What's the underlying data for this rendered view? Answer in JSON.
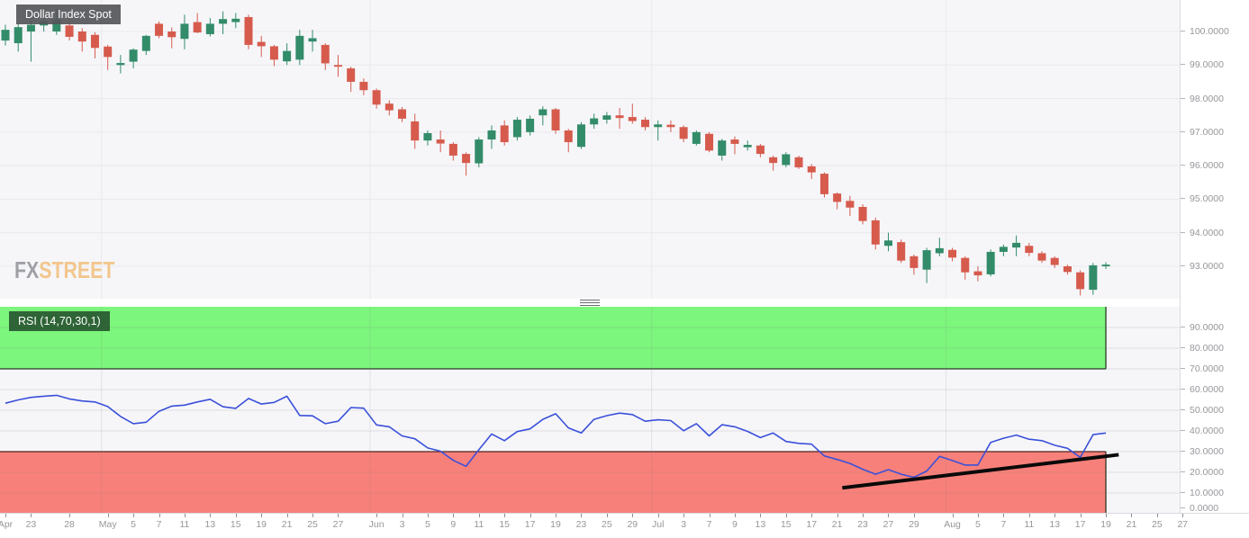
{
  "chart": {
    "symbol_label": "Dollar Index Spot",
    "indicator_label": "RSI (14,70,30,1)"
  },
  "watermark": {
    "fx": "FX",
    "street": "STREET"
  },
  "colors": {
    "up_candle": "#338c69",
    "down_candle": "#d65b4d",
    "rsi_line": "#3a50d9",
    "overbought_band": "#7cf67c",
    "oversold_band": "#f8807a",
    "band_border_dark": "#1f2a1f",
    "oversold_border_dark": "#4a1512",
    "trendline": "#0a0a0a",
    "plot_bg": "#f6f6f9",
    "grid": "#e9e9ee",
    "axis_text": "#96979b",
    "symbol_label_bg": "#58595c",
    "rsi_label_bg": "#2d5c35",
    "watermark_fx": "#9a9ca1",
    "watermark_street": "#f2c488"
  },
  "price_axis": {
    "tick_values": [
      100,
      99,
      98,
      97,
      96,
      95,
      94,
      93
    ],
    "tick_labels": [
      "100.0000",
      "99.0000",
      "98.0000",
      "97.0000",
      "96.0000",
      "95.0000",
      "94.0000",
      "93.0000"
    ]
  },
  "rsi_axis": {
    "tick_values": [
      90,
      80,
      70,
      60,
      50,
      40,
      30,
      20,
      10,
      0
    ],
    "tick_labels": [
      "90.0000",
      "80.0000",
      "70.0000",
      "60.0000",
      "50.0000",
      "40.0000",
      "30.0000",
      "20.0000",
      "10.0000",
      "0.0000"
    ]
  },
  "x_axis": {
    "ticks": [
      [
        "Apr",
        0
      ],
      [
        "23",
        2
      ],
      [
        "28",
        5
      ],
      [
        "May",
        8
      ],
      [
        "5",
        10
      ],
      [
        "7",
        12
      ],
      [
        "11",
        14
      ],
      [
        "13",
        16
      ],
      [
        "15",
        18
      ],
      [
        "19",
        20
      ],
      [
        "21",
        22
      ],
      [
        "25",
        24
      ],
      [
        "27",
        26
      ],
      [
        "Jun",
        29
      ],
      [
        "3",
        31
      ],
      [
        "5",
        33
      ],
      [
        "9",
        35
      ],
      [
        "11",
        37
      ],
      [
        "15",
        39
      ],
      [
        "17",
        41
      ],
      [
        "19",
        43
      ],
      [
        "23",
        45
      ],
      [
        "25",
        47
      ],
      [
        "29",
        49
      ],
      [
        "Jul",
        51
      ],
      [
        "3",
        53
      ],
      [
        "7",
        55
      ],
      [
        "9",
        57
      ],
      [
        "13",
        59
      ],
      [
        "15",
        61
      ],
      [
        "17",
        63
      ],
      [
        "21",
        65
      ],
      [
        "23",
        67
      ],
      [
        "27",
        69
      ],
      [
        "29",
        71
      ],
      [
        "Aug",
        74
      ],
      [
        "5",
        76
      ],
      [
        "7",
        78
      ],
      [
        "11",
        80
      ],
      [
        "13",
        82
      ],
      [
        "17",
        84
      ],
      [
        "19",
        86
      ],
      [
        "21",
        88
      ],
      [
        "25",
        90
      ],
      [
        "27",
        92
      ]
    ]
  },
  "chart_data": [
    {
      "type": "candlestick",
      "title": "Dollar Index Spot",
      "ylim": [
        92.05,
        100.95
      ],
      "y_ticks": [
        100,
        99,
        98,
        97,
        96,
        95,
        94,
        93
      ],
      "ohlc_format": [
        "date",
        "open",
        "high",
        "low",
        "close"
      ],
      "candles": [
        [
          "Apr 21",
          99.73,
          100.2,
          99.58,
          100.05
        ],
        [
          "Apr 22",
          99.65,
          100.22,
          99.4,
          100.13
        ],
        [
          "Apr 23",
          100,
          100.32,
          99.1,
          100.2
        ],
        [
          "Apr 24",
          100.18,
          100.45,
          100,
          100.3
        ],
        [
          "Apr 27",
          100,
          100.72,
          99.9,
          100.36
        ],
        [
          "Apr 28",
          100.18,
          100.45,
          99.73,
          99.84
        ],
        [
          "Apr 29",
          100,
          100.1,
          99.4,
          99.7
        ],
        [
          "Apr 30",
          99.9,
          99.98,
          99.2,
          99.51
        ],
        [
          "May 1",
          99.55,
          99.6,
          98.85,
          99.24
        ],
        [
          "May 4",
          99,
          99.3,
          98.75,
          99.06
        ],
        [
          "May 5",
          99.1,
          99.5,
          98.9,
          99.46
        ],
        [
          "May 6",
          99.42,
          99.9,
          99.3,
          99.87
        ],
        [
          "May 7",
          100.23,
          100.3,
          99.8,
          99.87
        ],
        [
          "May 8",
          100,
          100.12,
          99.5,
          99.83
        ],
        [
          "May 11",
          99.78,
          100.5,
          99.47,
          100.23
        ],
        [
          "May 12",
          100.28,
          100.55,
          99.95,
          99.97
        ],
        [
          "May 13",
          99.92,
          100.4,
          99.85,
          100.23
        ],
        [
          "May 14",
          100.23,
          100.6,
          99.92,
          100.37
        ],
        [
          "May 15",
          100.28,
          100.55,
          100.1,
          100.38
        ],
        [
          "May 18",
          100.43,
          100.5,
          99.47,
          99.6
        ],
        [
          "May 19",
          99.69,
          99.87,
          99.24,
          99.56
        ],
        [
          "May 20",
          99.56,
          99.6,
          98.97,
          99.16
        ],
        [
          "May 21",
          99.11,
          99.65,
          99,
          99.42
        ],
        [
          "May 22",
          99.16,
          100.05,
          99,
          99.87
        ],
        [
          "May 25",
          99.7,
          100.05,
          99.4,
          99.8
        ],
        [
          "May 26",
          99.6,
          99.65,
          98.85,
          99.05
        ],
        [
          "May 27",
          99,
          99.3,
          98.65,
          98.95
        ],
        [
          "May 28",
          98.9,
          98.95,
          98.2,
          98.5
        ],
        [
          "May 29",
          98.5,
          98.6,
          98.1,
          98.25
        ],
        [
          "Jun 1",
          98.25,
          98.3,
          97.7,
          97.82
        ],
        [
          "Jun 2",
          97.85,
          97.95,
          97.5,
          97.65
        ],
        [
          "Jun 3",
          97.68,
          97.75,
          97.3,
          97.4
        ],
        [
          "Jun 4",
          97.32,
          97.55,
          96.5,
          96.75
        ],
        [
          "Jun 5",
          96.75,
          97.05,
          96.6,
          96.97
        ],
        [
          "Jun 8",
          96.78,
          97.05,
          96.4,
          96.66
        ],
        [
          "Jun 9",
          96.65,
          96.7,
          96.15,
          96.3
        ],
        [
          "Jun 10",
          96.35,
          96.4,
          95.7,
          96.08
        ],
        [
          "Jun 11",
          96.07,
          96.85,
          95.95,
          96.78
        ],
        [
          "Jun 12",
          96.78,
          97.2,
          96.5,
          97.05
        ],
        [
          "Jun 15",
          97.2,
          97.35,
          96.6,
          96.7
        ],
        [
          "Jun 16",
          96.85,
          97.45,
          96.75,
          97.37
        ],
        [
          "Jun 17",
          97,
          97.5,
          96.9,
          97.4
        ],
        [
          "Jun 18",
          97.5,
          97.77,
          97.2,
          97.68
        ],
        [
          "Jun 19",
          97.68,
          97.72,
          96.95,
          97.05
        ],
        [
          "Jun 22",
          97.05,
          97.1,
          96.4,
          96.7
        ],
        [
          "Jun 23",
          96.56,
          97.3,
          96.5,
          97.23
        ],
        [
          "Jun 24",
          97.23,
          97.55,
          97.1,
          97.41
        ],
        [
          "Jun 25",
          97.37,
          97.6,
          97.25,
          97.5
        ],
        [
          "Jun 26",
          97.5,
          97.72,
          97.1,
          97.42
        ],
        [
          "Jun 29",
          97.45,
          97.85,
          97.25,
          97.33
        ],
        [
          "Jun 30",
          97.37,
          97.45,
          97.05,
          97.15
        ],
        [
          "Jul 1",
          97.15,
          97.35,
          96.75,
          97.23
        ],
        [
          "Jul 2",
          97.22,
          97.35,
          97,
          97.15
        ],
        [
          "Jul 3",
          97.15,
          97.2,
          96.7,
          96.8
        ],
        [
          "Jul 6",
          96.65,
          97.05,
          96.6,
          97
        ],
        [
          "Jul 7",
          96.95,
          97,
          96.4,
          96.45
        ],
        [
          "Jul 8",
          96.3,
          96.8,
          96.15,
          96.75
        ],
        [
          "Jul 9",
          96.78,
          96.87,
          96.34,
          96.65
        ],
        [
          "Jul 10",
          96.55,
          96.75,
          96.45,
          96.62
        ],
        [
          "Jul 13",
          96.6,
          96.65,
          96.25,
          96.35
        ],
        [
          "Jul 14",
          96.25,
          96.3,
          95.85,
          96.08
        ],
        [
          "Jul 15",
          96.02,
          96.4,
          95.95,
          96.34
        ],
        [
          "Jul 16",
          96.25,
          96.3,
          95.9,
          95.95
        ],
        [
          "Jul 17",
          95.98,
          96.05,
          95.6,
          95.8
        ],
        [
          "Jul 20",
          95.76,
          95.8,
          95.05,
          95.15
        ],
        [
          "Jul 21",
          95.17,
          95.2,
          94.7,
          94.92
        ],
        [
          "Jul 22",
          94.95,
          95.1,
          94.5,
          94.75
        ],
        [
          "Jul 23",
          94.77,
          94.85,
          94.25,
          94.35
        ],
        [
          "Jul 24",
          94.37,
          94.45,
          93.5,
          93.65
        ],
        [
          "Jul 27",
          93.61,
          94,
          93.45,
          93.77
        ],
        [
          "Jul 28",
          93.72,
          93.8,
          93.1,
          93.17
        ],
        [
          "Jul 29",
          93.3,
          93.35,
          92.75,
          92.95
        ],
        [
          "Jul 30",
          92.9,
          93.55,
          92.5,
          93.48
        ],
        [
          "Jul 31",
          93.39,
          93.85,
          93.3,
          93.54
        ],
        [
          "Aug 3",
          93.49,
          93.55,
          93.15,
          93.26
        ],
        [
          "Aug 4",
          93.25,
          93.3,
          92.6,
          92.82
        ],
        [
          "Aug 5",
          92.85,
          93,
          92.55,
          92.73
        ],
        [
          "Aug 6",
          92.76,
          93.5,
          92.7,
          93.43
        ],
        [
          "Aug 7",
          93.43,
          93.65,
          93.3,
          93.58
        ],
        [
          "Aug 10",
          93.56,
          93.92,
          93.3,
          93.7
        ],
        [
          "Aug 11",
          93.61,
          93.7,
          93.3,
          93.4
        ],
        [
          "Aug 12",
          93.39,
          93.45,
          93.1,
          93.17
        ],
        [
          "Aug 13",
          93.25,
          93.3,
          92.95,
          93.04
        ],
        [
          "Aug 14",
          93,
          93.05,
          92.75,
          92.83
        ],
        [
          "Aug 17",
          92.82,
          92.88,
          92.13,
          92.32
        ],
        [
          "Aug 18",
          92.3,
          93.1,
          92.15,
          93.03
        ],
        [
          "Aug 19",
          93,
          93.12,
          92.92,
          93.05
        ]
      ]
    },
    {
      "type": "line",
      "title": "RSI (14,70,30,1)",
      "ylim": [
        0,
        100
      ],
      "y_ticks": [
        90,
        80,
        70,
        60,
        50,
        40,
        30,
        20,
        10,
        0
      ],
      "overbought_level": 70,
      "oversold_level": 30,
      "bands_end_index": 86,
      "values": [
        53.4,
        55,
        56.2,
        56.8,
        57.2,
        55.5,
        54.5,
        54,
        51.8,
        47,
        43.5,
        44.2,
        49.5,
        52,
        52.5,
        54,
        55.3,
        51.7,
        50.9,
        55.7,
        53,
        53.8,
        56.8,
        47.5,
        47.3,
        43.5,
        44.7,
        51.3,
        51,
        42.9,
        42,
        37.6,
        36.2,
        31.8,
        30.2,
        25.8,
        22.9,
        30.9,
        38.5,
        35.3,
        39.7,
        41,
        45.6,
        48.3,
        41.5,
        39,
        45.6,
        47.4,
        48.6,
        47.9,
        44.7,
        45.4,
        45,
        40.1,
        43.5,
        37.6,
        43,
        42,
        39.8,
        36.8,
        39,
        34.9,
        34,
        33.6,
        27.9,
        26.2,
        24.3,
        21.5,
        19.1,
        21.3,
        19.1,
        17.6,
        20.6,
        27.7,
        25.7,
        23.5,
        23.5,
        34.5,
        36.5,
        38,
        36,
        35.3,
        33.1,
        31.6,
        27.2,
        38.2,
        39
      ],
      "trendline": {
        "description": "ascending support trendline drawn on RSI",
        "start": {
          "x_index": 65.4,
          "value": 12.5
        },
        "end": {
          "x_index": 87,
          "value": 28.5
        }
      }
    }
  ]
}
